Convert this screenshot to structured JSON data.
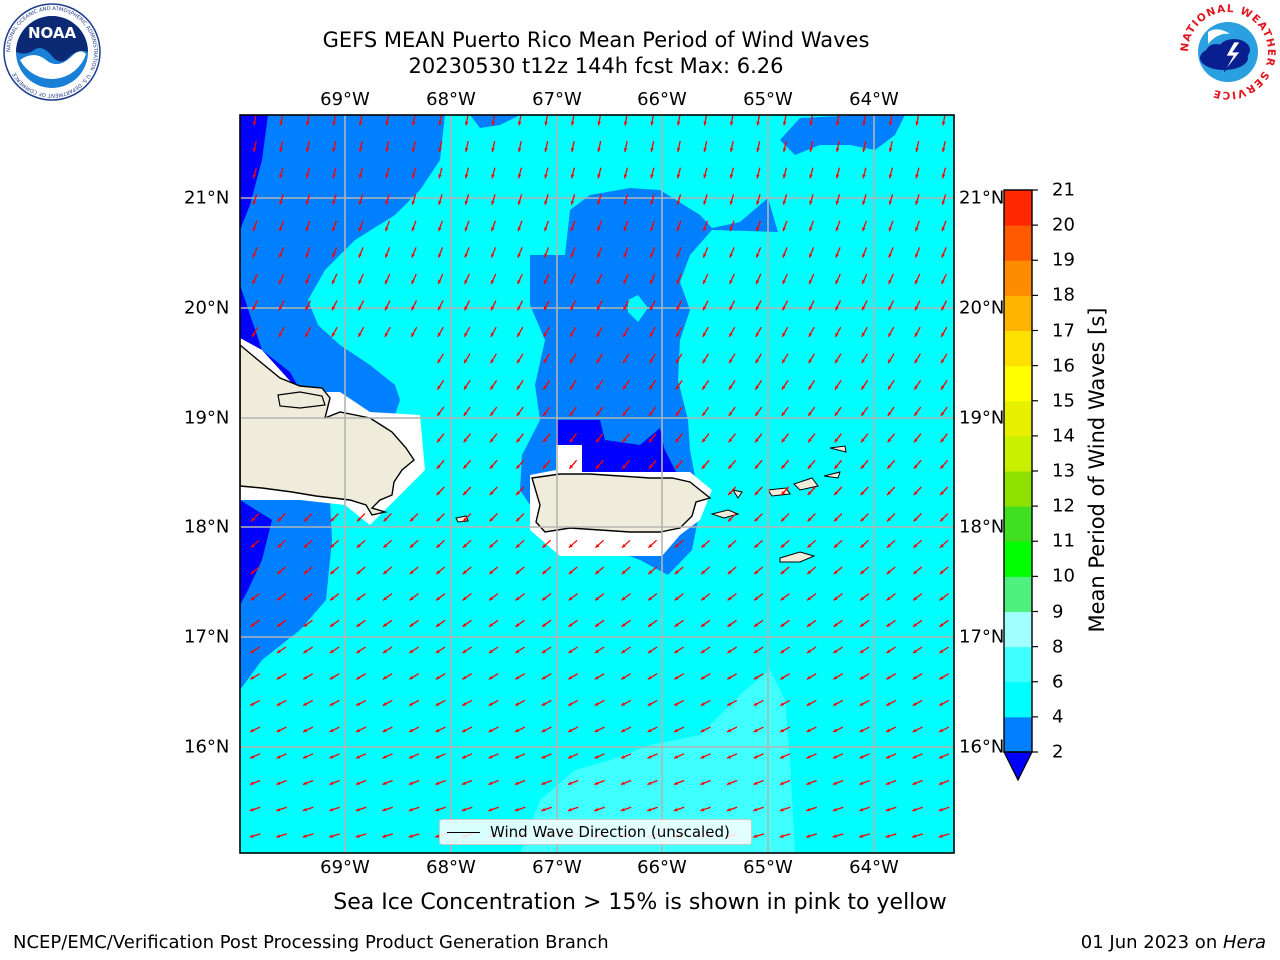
{
  "header": {
    "title_line1": "GEFS MEAN Puerto Rico Mean Period of Wind Waves",
    "title_line2": "20230530 t12z 144h fcst   Max: 6.26"
  },
  "logos": {
    "noaa": {
      "text": "NOAA",
      "ring_text": "NATIONAL OCEANIC AND ATMOSPHERIC ADMINISTRATION · U.S. DEPARTMENT OF COMMERCE"
    },
    "nws": {
      "ring_text": "NATIONAL WEATHER SERVICE"
    }
  },
  "map": {
    "lon_labels": [
      "69°W",
      "68°W",
      "67°W",
      "66°W",
      "65°W",
      "64°W"
    ],
    "lat_labels": [
      "21°N",
      "20°N",
      "19°N",
      "18°N",
      "17°N",
      "16°N"
    ],
    "extent": {
      "lon_min": -70.0,
      "lon_max": -63.25,
      "lat_min": 15.05,
      "lat_max": 21.75
    },
    "arrow_color": "#ff0000",
    "land_color": "#efecdc",
    "legend_label": "Wind Wave Direction (unscaled)"
  },
  "colorbar": {
    "label": "Mean Period of Wind Waves [s]",
    "tick_labels": [
      "2",
      "4",
      "6",
      "8",
      "9",
      "10",
      "11",
      "12",
      "13",
      "14",
      "15",
      "16",
      "17",
      "18",
      "19",
      "20",
      "21"
    ],
    "colors": [
      "#0080ff",
      "#00ffff",
      "#40ffff",
      "#a0ffff",
      "#50f080",
      "#00ff00",
      "#40e020",
      "#90e000",
      "#c8f000",
      "#e8f000",
      "#ffff00",
      "#ffe000",
      "#ffb400",
      "#ff8c00",
      "#ff5a00",
      "#ff2800",
      "#ff0000"
    ],
    "under_color": "#0000ff"
  },
  "footer": {
    "ice_note": "Sea Ice Concentration > 15% is shown in pink to yellow",
    "credit": "NCEP/EMC/Verification Post Processing Product Generation Branch",
    "date": "01 Jun 2023 on ",
    "host": "Hera"
  }
}
